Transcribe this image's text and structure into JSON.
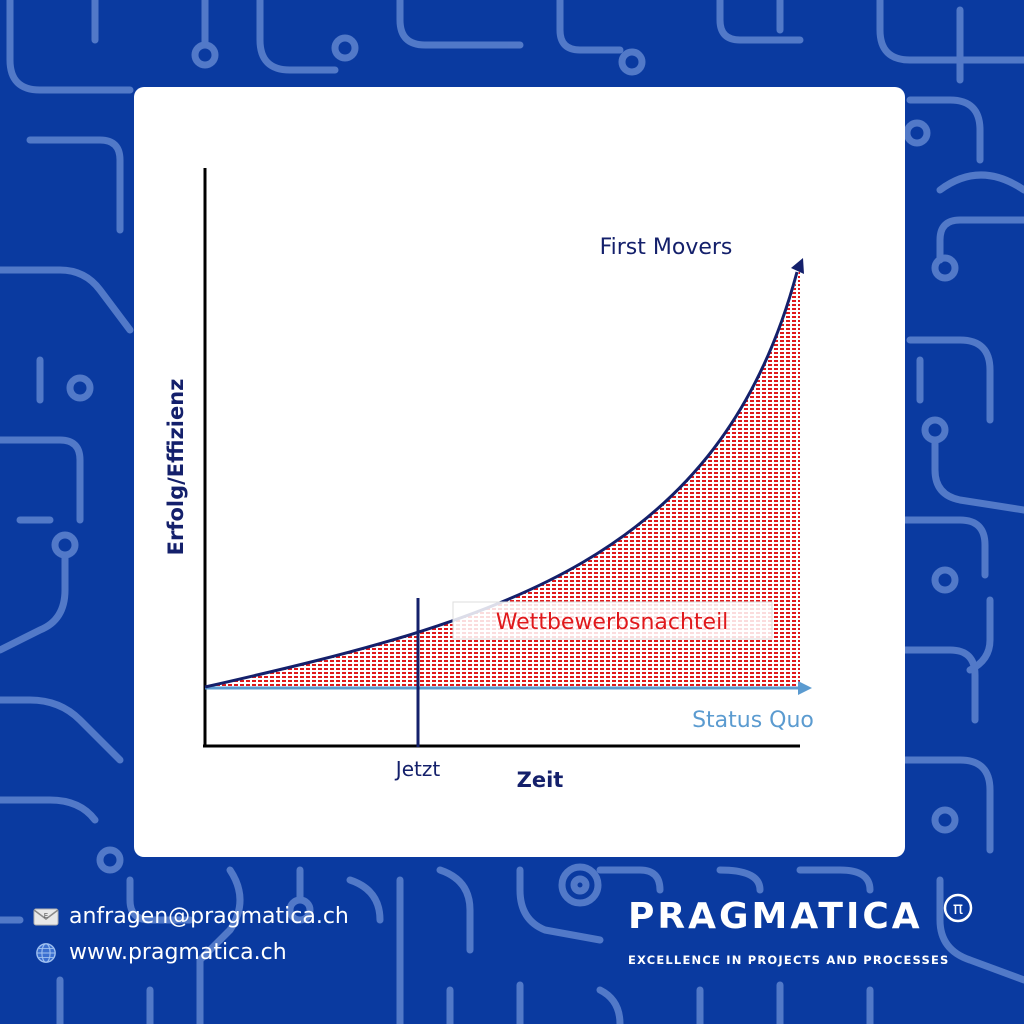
{
  "diagram": {
    "y_axis_label": "Erfolg/Effizienz",
    "x_axis_label": "Zeit",
    "curve_label": "First Movers",
    "baseline_label": "Status Quo",
    "marker_label": "Jetzt",
    "gap_label": "Wettbewerbsnachteil"
  },
  "footer": {
    "email": "anfragen@pragmatica.ch",
    "website": "www.pragmatica.ch",
    "email_icon": "envelope-icon",
    "web_icon": "globe-icon"
  },
  "brand": {
    "name": "PRAGMATICA",
    "symbol": "π",
    "tagline": "EXCELLENCE IN PROJECTS AND PROCESSES"
  },
  "colors": {
    "background": "#0a3aa0",
    "navy": "#14206b",
    "light_blue": "#5b9bd0",
    "red": "#e0181b"
  }
}
